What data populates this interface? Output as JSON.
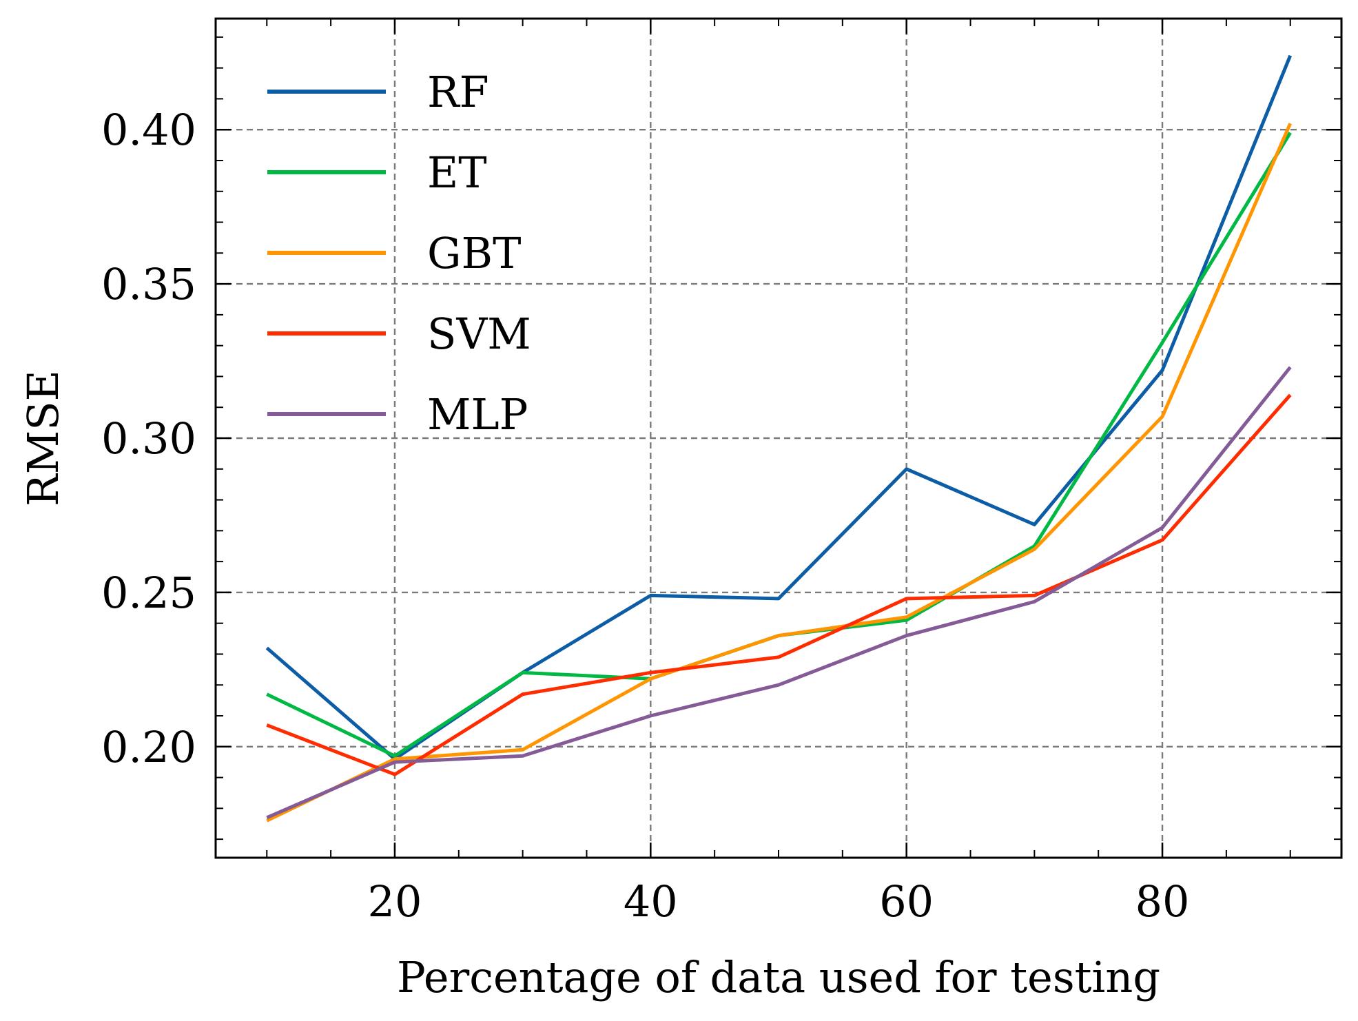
{
  "chart_data": {
    "type": "line",
    "title": "",
    "xlabel": "Percentage of data used for testing",
    "ylabel": "RMSE",
    "x": [
      10,
      20,
      30,
      40,
      50,
      60,
      70,
      80,
      90
    ],
    "xlim": [
      6,
      94
    ],
    "ylim": [
      0.164,
      0.436
    ],
    "xticks": [
      20,
      40,
      60,
      80
    ],
    "xtick_labels": [
      "20",
      "40",
      "60",
      "80"
    ],
    "yticks": [
      0.2,
      0.25,
      0.3,
      0.35,
      0.4
    ],
    "ytick_labels": [
      "0.20",
      "0.25",
      "0.30",
      "0.35",
      "0.40"
    ],
    "grid": true,
    "grid_style": "dashed",
    "legend_position": "top-left",
    "series": [
      {
        "name": "RF",
        "color": "#0C5DA5",
        "values": [
          0.232,
          0.196,
          0.224,
          0.249,
          0.248,
          0.29,
          0.272,
          0.322,
          0.424
        ]
      },
      {
        "name": "ET",
        "color": "#00B945",
        "values": [
          0.217,
          0.197,
          0.224,
          0.222,
          0.236,
          0.241,
          0.265,
          0.331,
          0.399
        ]
      },
      {
        "name": "GBT",
        "color": "#FF9500",
        "values": [
          0.176,
          0.196,
          0.199,
          0.222,
          0.236,
          0.242,
          0.264,
          0.307,
          0.402
        ]
      },
      {
        "name": "SVM",
        "color": "#FF2C00",
        "values": [
          0.207,
          0.191,
          0.217,
          0.224,
          0.229,
          0.248,
          0.249,
          0.267,
          0.314
        ]
      },
      {
        "name": "MLP",
        "color": "#845B97",
        "values": [
          0.177,
          0.195,
          0.197,
          0.21,
          0.22,
          0.236,
          0.247,
          0.271,
          0.323
        ]
      }
    ]
  }
}
